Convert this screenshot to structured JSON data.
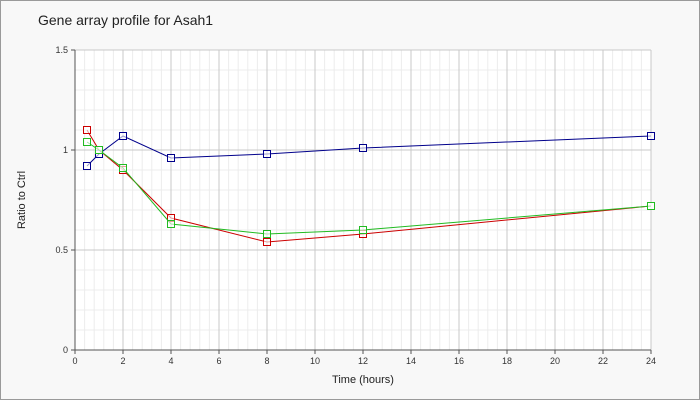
{
  "chart_data": {
    "type": "line",
    "title": "Gene array profile for Asah1",
    "xlabel": "Time (hours)",
    "ylabel": "Ratio to Ctrl",
    "xlim": [
      0,
      24
    ],
    "ylim": [
      0,
      1.5
    ],
    "x_ticks": [
      0,
      2,
      4,
      6,
      8,
      10,
      12,
      14,
      16,
      18,
      20,
      22,
      24
    ],
    "y_ticks": [
      0,
      0.5,
      1,
      1.5
    ],
    "x_tick_labels": [
      "0",
      "2",
      "4",
      "6",
      "8",
      "10",
      "12",
      "14",
      "16",
      "18",
      "20",
      "22",
      "24"
    ],
    "y_tick_labels": [
      "0",
      "0.5",
      "1",
      "1.5"
    ],
    "grid": true,
    "marker": "square",
    "series": [
      {
        "color": "#00008b",
        "x": [
          0.5,
          1,
          2,
          4,
          8,
          12,
          24
        ],
        "y": [
          0.92,
          0.98,
          1.07,
          0.96,
          0.98,
          1.01,
          1.07
        ]
      },
      {
        "color": "#cc0000",
        "x": [
          0.5,
          1,
          2,
          4,
          8,
          12,
          24
        ],
        "y": [
          1.1,
          1.0,
          0.9,
          0.66,
          0.54,
          0.58,
          0.72
        ]
      },
      {
        "color": "#22bb22",
        "x": [
          0.5,
          1,
          2,
          4,
          8,
          12,
          24
        ],
        "y": [
          1.04,
          1.0,
          0.91,
          0.63,
          0.58,
          0.6,
          0.72
        ]
      }
    ]
  }
}
